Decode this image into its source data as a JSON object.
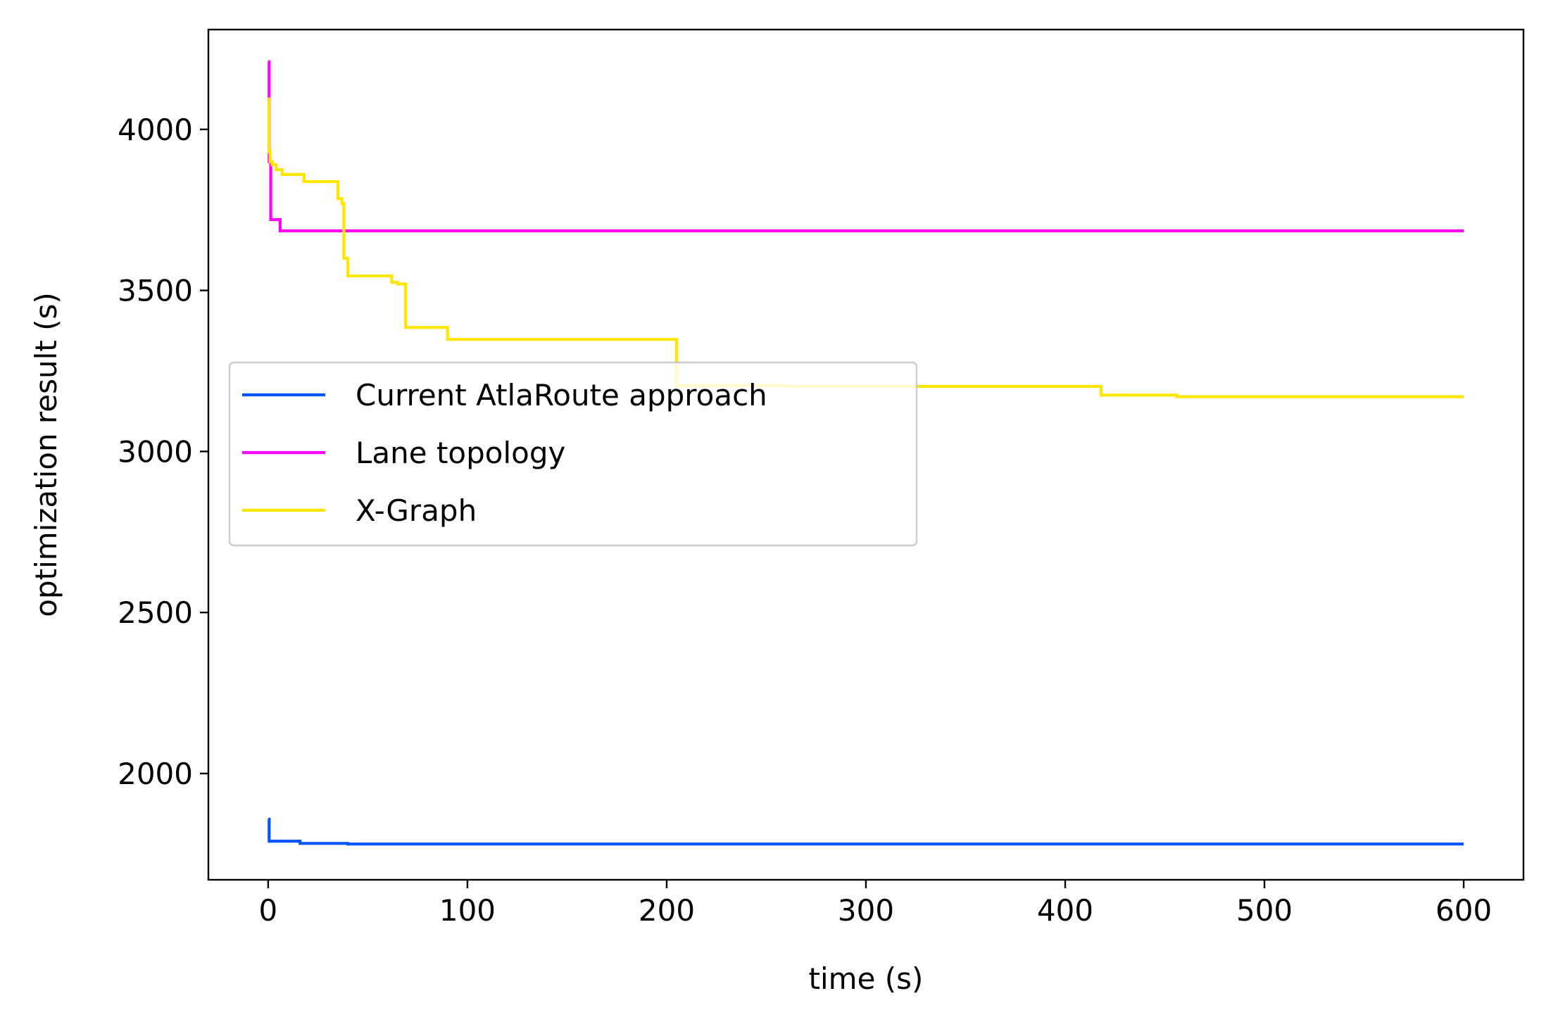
{
  "chart_data": {
    "type": "line",
    "title": "",
    "xlabel": "time (s)",
    "ylabel": "optimization result (s)",
    "xlim": [
      -30,
      630
    ],
    "ylim": [
      1670,
      4310
    ],
    "xticks": [
      0,
      100,
      200,
      300,
      400,
      500,
      600
    ],
    "yticks": [
      2000,
      2500,
      3000,
      3500,
      4000
    ],
    "xtick_labels": [
      "0",
      "100",
      "200",
      "300",
      "400",
      "500",
      "600"
    ],
    "ytick_labels": [
      "2000",
      "2500",
      "3000",
      "3500",
      "4000"
    ],
    "grid": false,
    "legend_position": "center-left",
    "line_style": "steps-post",
    "series": [
      {
        "name": "Current AtlaRoute approach",
        "color": "#0055ff",
        "x": [
          0,
          0.5,
          16,
          40,
          600
        ],
        "y": [
          1858,
          1790,
          1783,
          1781,
          1781
        ]
      },
      {
        "name": "Lane topology",
        "color": "#ff00ff",
        "points": [
          [
            0,
            4210
          ],
          [
            0.5,
            3900
          ],
          [
            1.3,
            3720
          ],
          [
            6,
            3685
          ],
          [
            600,
            3685
          ]
        ]
      },
      {
        "name": "X-Graph",
        "color": "#ffe600",
        "x": [
          0,
          0.4,
          1,
          2,
          4,
          7,
          18,
          35,
          37,
          38,
          40,
          62,
          65,
          69,
          90,
          205,
          260,
          418,
          456,
          600
        ],
        "y": [
          4095,
          3930,
          3900,
          3890,
          3875,
          3860,
          3838,
          3785,
          3770,
          3600,
          3545,
          3525,
          3520,
          3385,
          3348,
          3205,
          3202,
          3175,
          3170,
          3170
        ]
      }
    ]
  }
}
